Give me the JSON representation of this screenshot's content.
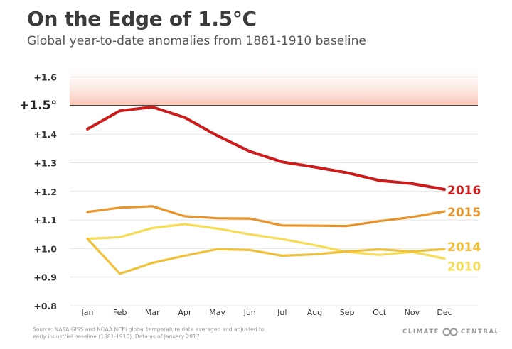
{
  "header": {
    "title": "On the Edge of 1.5°C",
    "subtitle": "Global year-to-date anomalies from 1881-1910 baseline"
  },
  "footer": {
    "source": "Source: NASA GISS and NOAA NCEI global temperature data averaged and adjusted to early industrial baseline (1881-1910). Data as of January 2017",
    "logo_left": "CLIMATE",
    "logo_right": "CENTRAL"
  },
  "chart_data": {
    "type": "line",
    "title": "On the Edge of 1.5°C",
    "subtitle": "Global year-to-date anomalies from 1881-1910 baseline",
    "categories": [
      "Jan",
      "Feb",
      "Mar",
      "Apr",
      "May",
      "Jun",
      "Jul",
      "Aug",
      "Sep",
      "Oct",
      "Nov",
      "Dec"
    ],
    "ylim": [
      0.8,
      1.65
    ],
    "yticks": [
      0.8,
      0.9,
      1.0,
      1.1,
      1.2,
      1.3,
      1.4,
      1.5,
      1.6
    ],
    "ytick_labels": [
      "+0.8",
      "+0.9",
      "+1.0",
      "+1.1",
      "+1.2",
      "+1.3",
      "+1.4",
      "+1.5°",
      "+1.6"
    ],
    "threshold": 1.5,
    "grid": true,
    "colors": {
      "2016": "#cc1c1c",
      "2015": "#e8942a",
      "2014": "#f0c038",
      "2010": "#f7dc58",
      "threshold_band": "#f9c4b4"
    },
    "series": [
      {
        "name": "2016",
        "values": [
          1.418,
          1.482,
          1.495,
          1.458,
          1.395,
          1.34,
          1.303,
          1.285,
          1.265,
          1.238,
          1.227,
          1.207
        ]
      },
      {
        "name": "2015",
        "values": [
          1.128,
          1.143,
          1.148,
          1.113,
          1.106,
          1.105,
          1.081,
          1.08,
          1.079,
          1.096,
          1.11,
          1.13
        ]
      },
      {
        "name": "2014",
        "values": [
          1.034,
          0.912,
          0.95,
          0.975,
          0.998,
          0.995,
          0.975,
          0.98,
          0.99,
          0.997,
          0.99,
          0.998
        ]
      },
      {
        "name": "2010",
        "values": [
          1.034,
          1.04,
          1.072,
          1.085,
          1.07,
          1.05,
          1.033,
          1.012,
          0.988,
          0.978,
          0.988,
          0.965
        ]
      }
    ]
  }
}
